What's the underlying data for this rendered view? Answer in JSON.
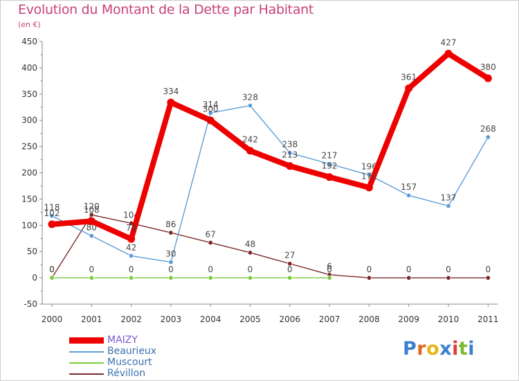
{
  "header": {
    "title": "Evolution du Montant de la Dette par Habitant",
    "subtitle": "(en €)"
  },
  "logo": {
    "letters": [
      "P",
      "r",
      "o",
      "x",
      "i",
      "t",
      "i"
    ],
    "colors": [
      "#3a7fd0",
      "#e06a1a",
      "#e8b51a",
      "#3a7fd0",
      "#e03a3a",
      "#7ab830",
      "#3a7fd0"
    ]
  },
  "chart_data": {
    "type": "line",
    "title": "Evolution du Montant de la Dette par Habitant",
    "subtitle": "(en €)",
    "x": [
      "2000",
      "2001",
      "2002",
      "2003",
      "2004",
      "2005",
      "2006",
      "2007",
      "2008",
      "2009",
      "2010",
      "2011"
    ],
    "ylim": [
      -50,
      450
    ],
    "yticks": [
      -50,
      0,
      50,
      100,
      150,
      200,
      250,
      300,
      350,
      400,
      450
    ],
    "grid": false,
    "legend": "bottom-left",
    "series": [
      {
        "name": "Révillon",
        "color": "#7a2a2a",
        "values": [
          0,
          120,
          104,
          86,
          67,
          48,
          27,
          6,
          0,
          0,
          0,
          0
        ],
        "labels": [
          "0",
          "120",
          "104",
          "86",
          "67",
          "48",
          "27",
          "6",
          "0",
          "0",
          "0",
          "0"
        ]
      },
      {
        "name": "Muscourt",
        "color": "#7acc3a",
        "values": [
          0,
          0,
          0,
          0,
          0,
          0,
          0,
          0,
          null,
          null,
          null,
          null
        ],
        "labels": [
          "0",
          "0",
          "0",
          "0",
          "0",
          "0",
          "0",
          "0",
          "",
          "",
          "",
          ""
        ]
      },
      {
        "name": "Beaurieux",
        "color": "#5b9bd5",
        "values": [
          118,
          80,
          42,
          30,
          314,
          328,
          238,
          217,
          196,
          157,
          137,
          268
        ],
        "labels": [
          "118",
          "80",
          "42",
          "30",
          "314",
          "328",
          "238",
          "217",
          "196",
          "157",
          "137",
          "268"
        ]
      },
      {
        "name": "MAIZY",
        "color": "#ee0000",
        "values": [
          102,
          108,
          74,
          334,
          300,
          242,
          213,
          192,
          172,
          361,
          427,
          380
        ],
        "labels": [
          "102",
          "108",
          "74",
          "334",
          "300",
          "242",
          "213",
          "192",
          "172",
          "361",
          "427",
          "380"
        ]
      }
    ],
    "legend_entries": [
      {
        "name": "MAIZY",
        "color": "#ee0000",
        "text_color": "#7a55d0"
      },
      {
        "name": "Beaurieux",
        "color": "#5b9bd5",
        "text_color": "#3a6fb0"
      },
      {
        "name": "Muscourt",
        "color": "#7acc3a",
        "text_color": "#3a6fb0"
      },
      {
        "name": "Révillon",
        "color": "#7a2a2a",
        "text_color": "#3a6fb0"
      }
    ]
  }
}
